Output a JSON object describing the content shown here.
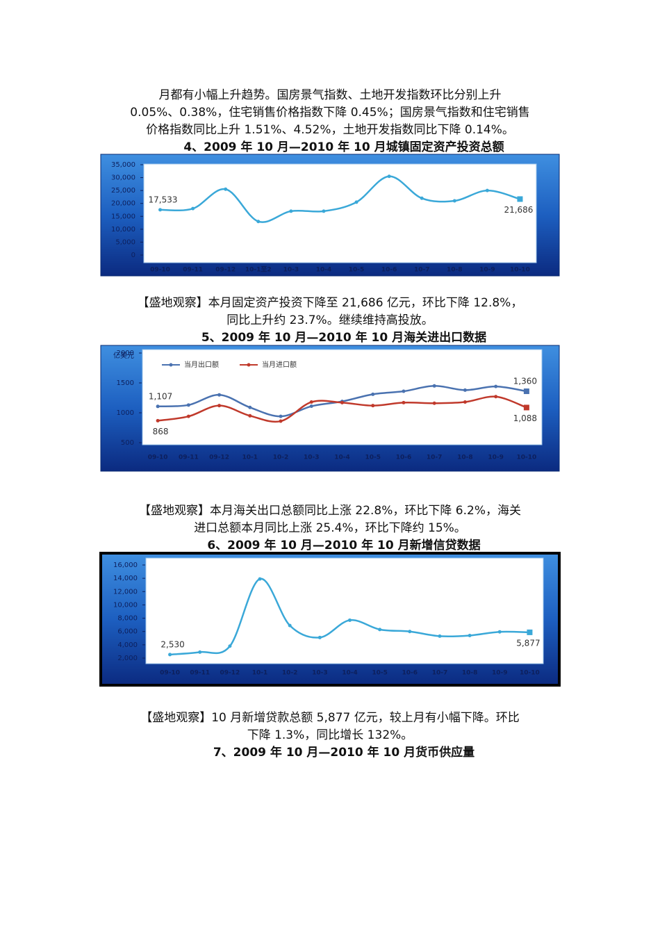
{
  "paragraphs": [
    [
      "月都有小幅上升趋势。国房景气指数、土地开发指数环比分别上升",
      "0.05%、0.38%，住宅销售价格指数下降 0.45%；国房景气指数和住宅销售",
      "价格指数同比上升 1.51%、4.52%，土地开发指数同比下降 0.14%。"
    ],
    [
      "【盛地观察】本月固定资产投资下降至 21,686 亿元，环比下降 12.8%，",
      "同比上升约 23.7%。继续维持高投放。"
    ],
    [
      "【盛地观察】本月海关出口总额同比上涨 22.8%，环比下降 6.2%，海关",
      "进口总额本月同比上涨 25.4%，环比下降约 15%。"
    ],
    [
      "【盛地观察】10 月新增贷款总额 5,877 亿元，较上月有小幅下降。环比",
      "下降 1.3%，同比增长 132%。"
    ]
  ],
  "closing_heading": "7、2009 年 10 月—2010 年 10 月货币供应量",
  "chart_data": [
    {
      "type": "line",
      "title": "4、2009 年 10 月—2010 年 10 月城镇固定资产投资总额",
      "categories": [
        "09-10",
        "09-11",
        "09-12",
        "10-1至2",
        "10-3",
        "10-4",
        "10-5",
        "10-6",
        "10-7",
        "10-8",
        "10-9",
        "10-10"
      ],
      "values": [
        17533,
        18000,
        25500,
        13000,
        17000,
        17000,
        20500,
        30500,
        22000,
        21000,
        25000,
        21686
      ],
      "value_labels": [
        "17,533",
        null,
        null,
        null,
        null,
        null,
        null,
        null,
        null,
        null,
        null,
        "21,686"
      ],
      "color": "#3aa8d8",
      "ylim": [
        0,
        35000
      ],
      "yticks": [
        0,
        {
          "value": 5000,
          "label": "5,000"
        },
        {
          "value": 10000,
          "label": "10,000"
        },
        {
          "value": 15000,
          "label": "15,000"
        },
        {
          "value": 20000,
          "label": "20,000"
        },
        {
          "value": 25000,
          "label": "25,000"
        },
        {
          "value": 30000,
          "label": "30,000"
        },
        {
          "value": 35000,
          "label": "35,000"
        }
      ]
    },
    {
      "type": "line",
      "title": "5、2009 年 10 月—2010 年 10 月海关进出口数据",
      "ylabel": "亿美元",
      "categories": [
        "09-10",
        "09-11",
        "09-12",
        "10-1",
        "10-2",
        "10-3",
        "10-4",
        "10-5",
        "10-6",
        "10-7",
        "10-8",
        "10-9",
        "10-10"
      ],
      "series": [
        {
          "name": "当月出口额",
          "color": "#4a72b0",
          "values": [
            1107,
            1130,
            1300,
            1090,
            940,
            1110,
            1190,
            1310,
            1360,
            1450,
            1380,
            1440,
            1360
          ],
          "value_labels": [
            "1,107",
            null,
            null,
            null,
            null,
            null,
            null,
            null,
            null,
            null,
            null,
            null,
            "1,360"
          ]
        },
        {
          "name": "当月进口额",
          "color": "#c0392b",
          "values": [
            868,
            940,
            1120,
            950,
            860,
            1180,
            1170,
            1120,
            1170,
            1160,
            1180,
            1270,
            1088
          ],
          "value_labels": [
            "868",
            null,
            null,
            null,
            null,
            null,
            null,
            null,
            null,
            null,
            null,
            null,
            "1,088"
          ]
        }
      ],
      "ylim": [
        500,
        2000
      ],
      "yticks": [
        500,
        1000,
        1500,
        2000
      ]
    },
    {
      "type": "line",
      "title": "6、2009 年 10 月—2010 年 10 月新增信贷数据",
      "categories": [
        "09-10",
        "09-11",
        "09-12",
        "10-1",
        "10-2",
        "10-3",
        "10-4",
        "10-5",
        "10-6",
        "10-7",
        "10-8",
        "10-9",
        "10-10"
      ],
      "values": [
        2530,
        2900,
        3800,
        13900,
        6900,
        5100,
        7700,
        6300,
        6000,
        5300,
        5400,
        5950,
        5877
      ],
      "value_labels": [
        "2,530",
        null,
        null,
        null,
        null,
        null,
        null,
        null,
        null,
        null,
        null,
        null,
        "5,877"
      ],
      "color": "#3aa8d8",
      "ylim": [
        2000,
        16000
      ],
      "yticks": [
        {
          "value": 2000,
          "label": "2,000"
        },
        {
          "value": 4000,
          "label": "4,000"
        },
        {
          "value": 6000,
          "label": "6,000"
        },
        {
          "value": 8000,
          "label": "8,000"
        },
        {
          "value": 10000,
          "label": "10,000"
        },
        {
          "value": 12000,
          "label": "12,000"
        },
        {
          "value": 14000,
          "label": "14,000"
        },
        {
          "value": 16000,
          "label": "16,000"
        }
      ]
    }
  ]
}
